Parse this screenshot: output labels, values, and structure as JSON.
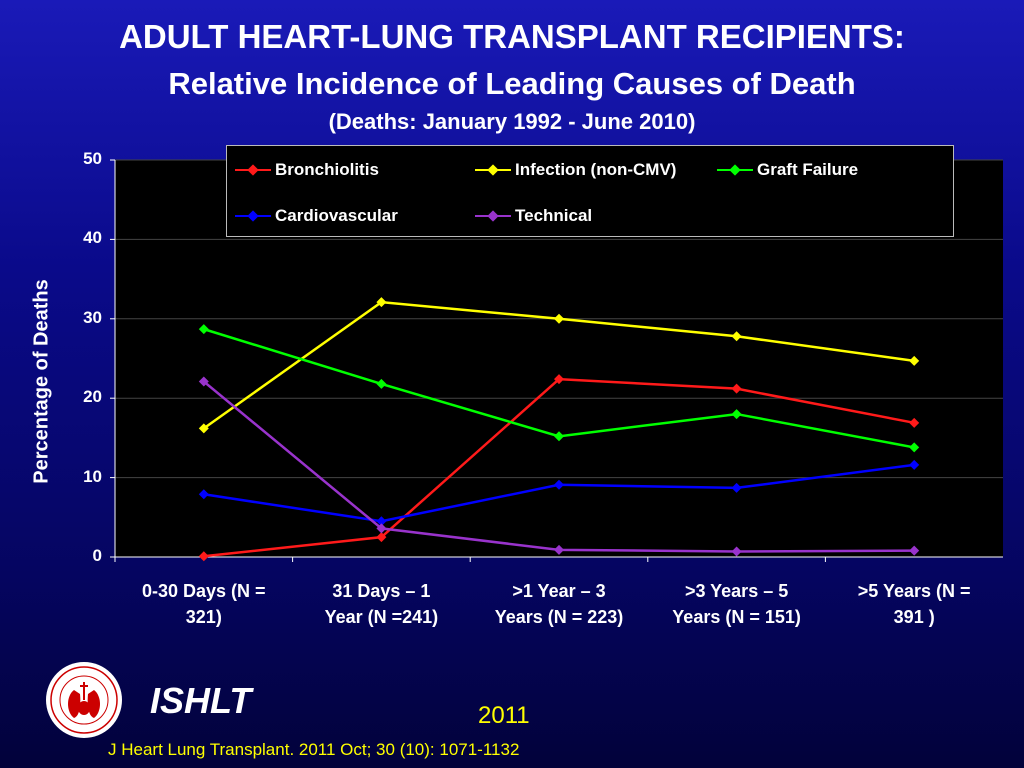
{
  "header": {
    "title": "ADULT HEART-LUNG TRANSPLANT RECIPIENTS:",
    "subtitle": "Relative Incidence of Leading Causes of Death",
    "period": "(Deaths: January 1992 - June 2010)"
  },
  "footer": {
    "org": "ISHLT",
    "year": "2011",
    "citation": "J Heart Lung Transplant. 2011 Oct; 30 (10): 1071-1132"
  },
  "chart_data": {
    "type": "line",
    "title": "Relative Incidence of Leading Causes of Death",
    "ylabel": "Percentage of Deaths",
    "xlabel": "",
    "ylim": [
      0,
      50
    ],
    "yticks": [
      "0",
      "10",
      "20",
      "30",
      "40",
      "50"
    ],
    "categories": [
      "0-30 Days  (N =\n321)",
      "31 Days –  1\nYear  (N =241)",
      ">1 Year – 3\nYears (N = 223)",
      ">3 Years – 5\nYears (N = 151)",
      ">5 Years  (N =\n391 )"
    ],
    "grid": true,
    "legend_position": "top",
    "series": [
      {
        "name": "Bronchiolitis",
        "color": "#ff1a1a",
        "values": [
          0.1,
          2.5,
          22.4,
          21.2,
          16.9
        ]
      },
      {
        "name": "Infection (non-CMV)",
        "color": "#ffff00",
        "values": [
          16.2,
          32.1,
          30.0,
          27.8,
          24.7
        ]
      },
      {
        "name": "Graft Failure",
        "color": "#00ff00",
        "values": [
          28.7,
          21.8,
          15.2,
          18.0,
          13.8
        ]
      },
      {
        "name": "Cardiovascular",
        "color": "#0000ff",
        "values": [
          7.9,
          4.5,
          9.1,
          8.7,
          11.6
        ]
      },
      {
        "name": "Technical",
        "color": "#9933cc",
        "values": [
          22.1,
          3.6,
          0.9,
          0.7,
          0.8
        ]
      }
    ]
  }
}
